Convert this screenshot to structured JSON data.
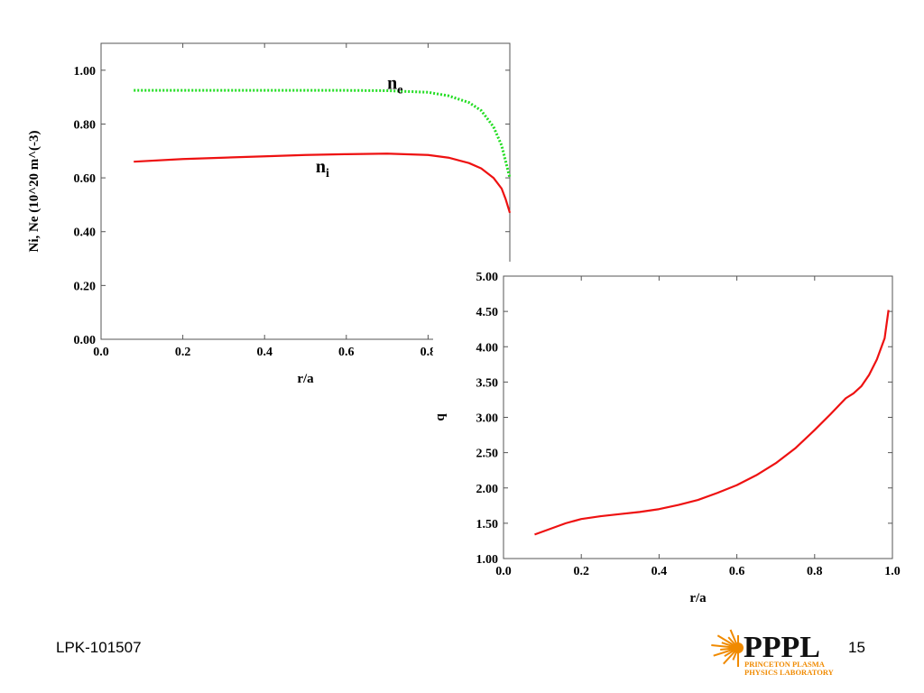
{
  "footer": {
    "label": "LPK-101507",
    "page_number": "15"
  },
  "logo": {
    "text_main": "PPPL",
    "text_sub1": "PRINCETON PLASMA",
    "text_sub2": "PHYSICS LABORATORY",
    "color_main": "#111111",
    "color_accent": "#f08a00"
  },
  "chart_data": [
    {
      "type": "line",
      "title": "",
      "xlabel": "r/a",
      "ylabel": "Ni, Ne (10^20 m^(-3)",
      "xlim": [
        0.0,
        1.0
      ],
      "ylim": [
        0.0,
        1.1
      ],
      "xticks": [
        0.0,
        0.2,
        0.4,
        0.6,
        0.8
      ],
      "xtick_labels": [
        "0.0",
        "0.2",
        "0.4",
        "0.6",
        "0.8"
      ],
      "yticks": [
        0.0,
        0.2,
        0.4,
        0.6,
        0.8,
        1.0
      ],
      "ytick_labels": [
        "0.00",
        "0.20",
        "0.40",
        "0.60",
        "0.80",
        "1.00"
      ],
      "grid": false,
      "series": [
        {
          "name": "n_e",
          "color": "#22dd22",
          "style": "dotted",
          "x": [
            0.08,
            0.2,
            0.4,
            0.6,
            0.7,
            0.8,
            0.85,
            0.9,
            0.93,
            0.96,
            0.98,
            0.99,
            1.0
          ],
          "y": [
            0.925,
            0.925,
            0.925,
            0.925,
            0.924,
            0.918,
            0.905,
            0.88,
            0.85,
            0.79,
            0.72,
            0.66,
            0.6
          ]
        },
        {
          "name": "n_i",
          "color": "#ee1111",
          "style": "solid",
          "x": [
            0.08,
            0.2,
            0.3,
            0.4,
            0.5,
            0.6,
            0.7,
            0.8,
            0.85,
            0.9,
            0.93,
            0.96,
            0.98,
            0.99,
            1.0
          ],
          "y": [
            0.66,
            0.67,
            0.675,
            0.68,
            0.685,
            0.688,
            0.69,
            0.685,
            0.675,
            0.655,
            0.635,
            0.6,
            0.56,
            0.52,
            0.47
          ]
        }
      ],
      "annotations": [
        {
          "base": "n",
          "sub": "e",
          "x": 0.7,
          "y": 0.93
        },
        {
          "base": "n",
          "sub": "i",
          "x": 0.525,
          "y": 0.62
        }
      ]
    },
    {
      "type": "line",
      "title": "",
      "xlabel": "r/a",
      "ylabel": "q",
      "xlim": [
        0.0,
        1.0
      ],
      "ylim": [
        1.0,
        5.0
      ],
      "xticks": [
        0.0,
        0.2,
        0.4,
        0.6,
        0.8,
        1.0
      ],
      "xtick_labels": [
        "0.0",
        "0.2",
        "0.4",
        "0.6",
        "0.8",
        "1.0"
      ],
      "yticks": [
        1.0,
        1.5,
        2.0,
        2.5,
        3.0,
        3.5,
        4.0,
        4.5,
        5.0
      ],
      "ytick_labels": [
        "1.00",
        "1.50",
        "2.00",
        "2.50",
        "3.00",
        "3.50",
        "4.00",
        "4.50",
        "5.00"
      ],
      "grid": false,
      "series": [
        {
          "name": "",
          "color": "#ee1111",
          "style": "solid",
          "x": [
            0.08,
            0.12,
            0.16,
            0.2,
            0.25,
            0.3,
            0.35,
            0.4,
            0.45,
            0.5,
            0.55,
            0.6,
            0.65,
            0.7,
            0.75,
            0.8,
            0.84,
            0.88,
            0.9,
            0.92,
            0.94,
            0.96,
            0.98,
            0.99
          ],
          "y": [
            1.34,
            1.42,
            1.5,
            1.56,
            1.6,
            1.63,
            1.66,
            1.7,
            1.76,
            1.83,
            1.93,
            2.04,
            2.18,
            2.35,
            2.56,
            2.82,
            3.04,
            3.27,
            3.34,
            3.44,
            3.6,
            3.82,
            4.12,
            4.52
          ]
        }
      ],
      "annotations": []
    }
  ]
}
